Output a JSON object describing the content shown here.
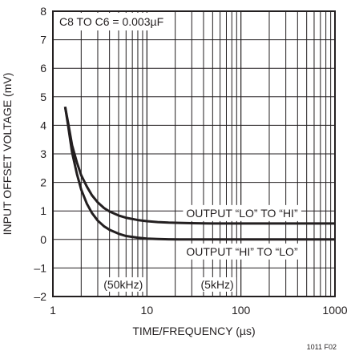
{
  "chart_data": {
    "type": "line",
    "title": "",
    "xlabel": "TIME/FREQUENCY (µs)",
    "ylabel": "INPUT OFFSET VOLTAGE (mV)",
    "xscale": "log",
    "xlim": [
      1,
      1000
    ],
    "ylim": [
      -2,
      8
    ],
    "grid": true,
    "x_ticks": [
      1,
      10,
      100,
      1000
    ],
    "x_tick_labels": [
      "1",
      "10",
      "100",
      "1000"
    ],
    "y_ticks": [
      -2,
      -1,
      0,
      1,
      2,
      3,
      4,
      5,
      6,
      7,
      8
    ],
    "y_tick_labels": [
      "–2",
      "–1",
      "0",
      "1",
      "2",
      "3",
      "4",
      "5",
      "6",
      "7",
      "8"
    ],
    "annotations": {
      "condition": "C8 TO C6 = 0.003µF",
      "curve_upper": "OUTPUT “LO” TO “HI”",
      "curve_lower": "OUTPUT “HI” TO “LO”",
      "band_50k": "(50kHz)",
      "band_5k": "(5kHz)"
    },
    "figure_id": "1011 F02",
    "series": [
      {
        "label_key": "curve_upper",
        "x": [
          1.35,
          1.45,
          1.6,
          1.8,
          2.0,
          2.3,
          2.6,
          3.0,
          3.5,
          4,
          5,
          6,
          8,
          10,
          13,
          17,
          22,
          30,
          50,
          100,
          200,
          500,
          1000
        ],
        "y": [
          4.65,
          4.1,
          3.3,
          2.7,
          2.25,
          1.85,
          1.55,
          1.3,
          1.1,
          0.98,
          0.84,
          0.76,
          0.68,
          0.64,
          0.61,
          0.59,
          0.58,
          0.57,
          0.56,
          0.56,
          0.56,
          0.56,
          0.56
        ]
      },
      {
        "label_key": "curve_lower",
        "x": [
          1.35,
          1.45,
          1.6,
          1.8,
          2.0,
          2.3,
          2.6,
          3.0,
          3.5,
          4,
          5,
          6,
          8,
          10,
          13,
          17,
          22,
          30,
          50,
          100,
          200,
          500,
          1000
        ],
        "y": [
          4.65,
          4.0,
          3.05,
          2.3,
          1.75,
          1.25,
          0.93,
          0.66,
          0.46,
          0.34,
          0.2,
          0.12,
          0.06,
          0.03,
          0.015,
          0.005,
          0.0,
          0.0,
          0.0,
          0.0,
          0.0,
          0.0,
          0.0
        ]
      }
    ]
  }
}
